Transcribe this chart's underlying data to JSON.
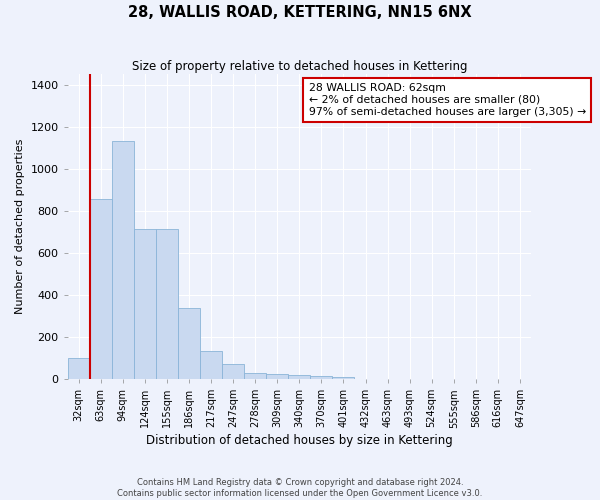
{
  "title": "28, WALLIS ROAD, KETTERING, NN15 6NX",
  "subtitle": "Size of property relative to detached houses in Kettering",
  "xlabel": "Distribution of detached houses by size in Kettering",
  "ylabel": "Number of detached properties",
  "footer_line1": "Contains HM Land Registry data © Crown copyright and database right 2024.",
  "footer_line2": "Contains public sector information licensed under the Open Government Licence v3.0.",
  "annotation_title": "28 WALLIS ROAD: 62sqm",
  "annotation_line1": "← 2% of detached houses are smaller (80)",
  "annotation_line2": "97% of semi-detached houses are larger (3,305) →",
  "bar_color": "#c9d9f0",
  "bar_edge_color": "#8ab4d8",
  "vline_color": "#cc0000",
  "annotation_box_edge": "#cc0000",
  "bg_color": "#eef2fc",
  "grid_color": "#ffffff",
  "categories": [
    "32sqm",
    "63sqm",
    "94sqm",
    "124sqm",
    "155sqm",
    "186sqm",
    "217sqm",
    "247sqm",
    "278sqm",
    "309sqm",
    "340sqm",
    "370sqm",
    "401sqm",
    "432sqm",
    "463sqm",
    "493sqm",
    "524sqm",
    "555sqm",
    "586sqm",
    "616sqm",
    "647sqm"
  ],
  "values": [
    100,
    855,
    1130,
    715,
    715,
    340,
    135,
    70,
    30,
    25,
    20,
    15,
    12,
    0,
    0,
    0,
    0,
    0,
    0,
    0,
    0
  ],
  "vline_x": 0.5,
  "ylim": [
    0,
    1450
  ],
  "yticks": [
    0,
    200,
    400,
    600,
    800,
    1000,
    1200,
    1400
  ]
}
